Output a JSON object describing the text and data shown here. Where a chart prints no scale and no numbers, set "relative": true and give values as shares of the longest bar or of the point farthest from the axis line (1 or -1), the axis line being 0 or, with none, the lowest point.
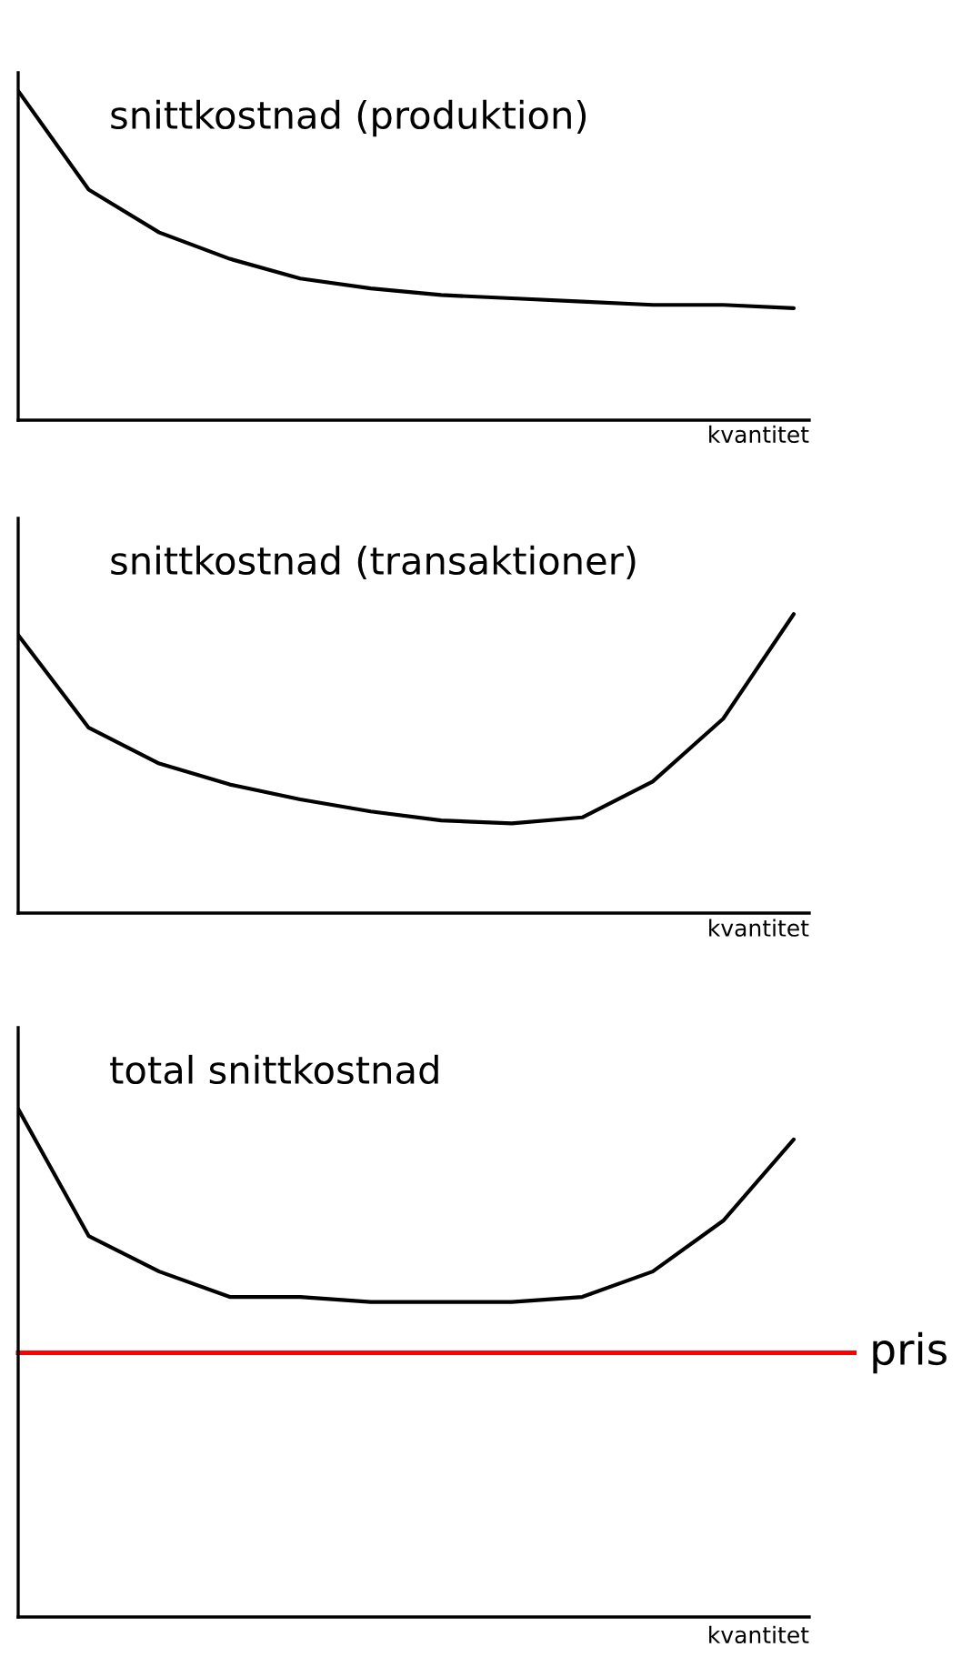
{
  "chart_data": [
    {
      "type": "line",
      "title": "snittkostnad (produktion)",
      "xlabel": "kvantitet",
      "relative": true,
      "categories": [
        null,
        null,
        null,
        null,
        null,
        null,
        null,
        null,
        null,
        null,
        null,
        null
      ],
      "series": [
        {
          "color": "#000000",
          "values": [
            1,
            0.7,
            0.57,
            0.49,
            0.43,
            0.4,
            0.38,
            0.37,
            0.36,
            0.35,
            0.35,
            0.34
          ]
        }
      ]
    },
    {
      "type": "line",
      "title": "snittkostnad (transaktioner)",
      "xlabel": "kvantitet",
      "relative": true,
      "categories": [
        null,
        null,
        null,
        null,
        null,
        null,
        null,
        null,
        null,
        null,
        null,
        null
      ],
      "series": [
        {
          "color": "#000000",
          "values": [
            0.93,
            0.62,
            0.5,
            0.43,
            0.38,
            0.34,
            0.31,
            0.3,
            0.32,
            0.44,
            0.65,
            1
          ]
        }
      ]
    },
    {
      "type": "line",
      "title": "total snittkostnad",
      "xlabel": "kvantitet",
      "relative": true,
      "categories": [
        null,
        null,
        null,
        null,
        null,
        null,
        null,
        null,
        null,
        null,
        null,
        null
      ],
      "series": [
        {
          "color": "#000000",
          "values": [
            1,
            0.75,
            0.68,
            0.63,
            0.63,
            0.62,
            0.62,
            0.62,
            0.63,
            0.68,
            0.78,
            0.94
          ]
        }
      ],
      "ref_lines": [
        {
          "axis": "y",
          "value": 0.52,
          "label": "pris",
          "color": "#ff0000"
        }
      ]
    }
  ]
}
